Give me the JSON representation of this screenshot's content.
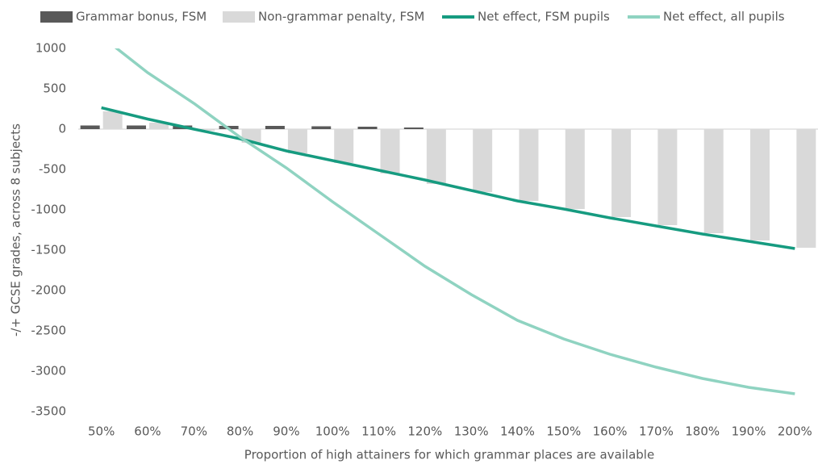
{
  "chart_data": {
    "type": "bar_line",
    "x_label": "Proportion of high attainers for which grammar places are available",
    "y_label": "-/+ GCSE grades, across 8 subjects",
    "categories": [
      "50%",
      "60%",
      "70%",
      "80%",
      "90%",
      "100%",
      "110%",
      "120%",
      "130%",
      "140%",
      "150%",
      "160%",
      "170%",
      "180%",
      "190%",
      "200%"
    ],
    "series": [
      {
        "name": "Grammar bonus, FSM",
        "kind": "bar",
        "color": "#595959",
        "values": [
          45,
          45,
          45,
          40,
          40,
          35,
          30,
          20,
          0,
          0,
          0,
          0,
          0,
          0,
          0,
          0
        ]
      },
      {
        "name": "Non-grammar penalty, FSM",
        "kind": "bar",
        "color": "#d9d9d9",
        "values": [
          220,
          80,
          -20,
          -170,
          -300,
          -420,
          -550,
          -680,
          -780,
          -890,
          -990,
          -1090,
          -1190,
          -1290,
          -1380,
          -1470
        ]
      },
      {
        "name": "Net effect, FSM pupils",
        "kind": "line",
        "color": "#169b80",
        "values": [
          265,
          125,
          0,
          -120,
          -270,
          -390,
          -510,
          -630,
          -760,
          -890,
          -990,
          -1100,
          -1200,
          -1300,
          -1390,
          -1480
        ]
      },
      {
        "name": "Net effect, all pupils",
        "kind": "line",
        "color": "#8fd3c1",
        "values": [
          1150,
          700,
          320,
          -100,
          -480,
          -900,
          -1300,
          -1700,
          -2050,
          -2370,
          -2600,
          -2790,
          -2950,
          -3090,
          -3200,
          -3280
        ]
      }
    ],
    "ylim": [
      -3500,
      1000
    ],
    "yticks": [
      1000,
      500,
      0,
      -500,
      -1000,
      -1500,
      -2000,
      -2500,
      -3000,
      -3500
    ]
  }
}
